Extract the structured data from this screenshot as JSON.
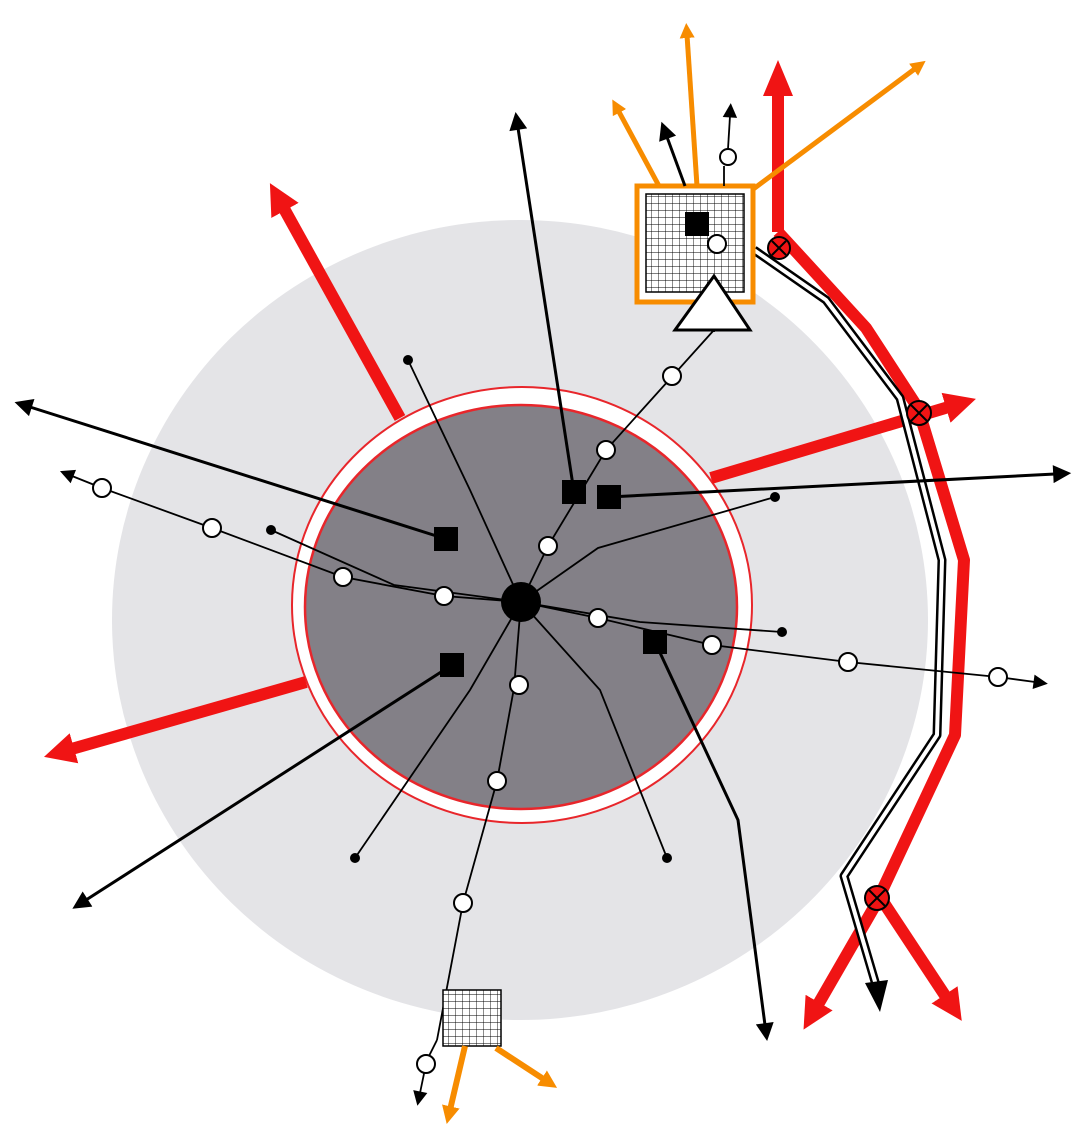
{
  "diagram": {
    "colors": {
      "background": "#ffffff",
      "outer_zone": "#e4e4e7",
      "core_fill": "#838087",
      "core_border": "#e8262b",
      "red_flow": "#f01414",
      "orange_flow": "#f78c00",
      "black_line": "#000000",
      "node_fill": "#ffffff",
      "grid_box_border_highlight": "#f78c00"
    },
    "icons": {
      "hub": "filled-circle",
      "station": "open-circle",
      "terminal": "small-dot",
      "square_node": "filled-square",
      "grid_box": "grid",
      "triangle": "open-triangle",
      "crossing": "circled-x"
    }
  }
}
